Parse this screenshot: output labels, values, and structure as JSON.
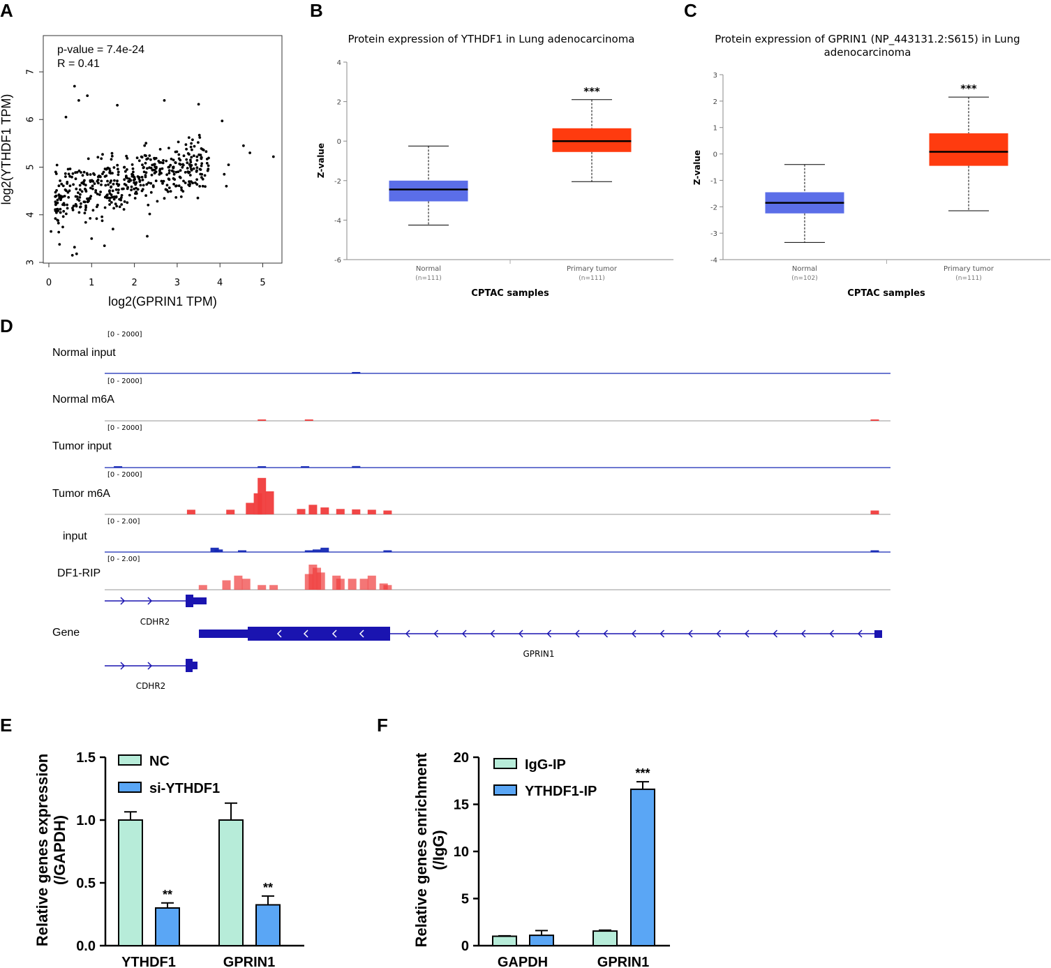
{
  "figure": {
    "panel_labels": [
      "A",
      "B",
      "C",
      "D",
      "E",
      "F"
    ]
  },
  "colors": {
    "normal_box": "#5b6ee8",
    "tumor_box": "#ff3b0f",
    "igv_blue": "#1428b4",
    "igv_red": "#f03c3c",
    "gene_blue": "#1a14b0",
    "nc_bar": "#b7ecd9",
    "si_bar": "#5aa6f5"
  },
  "chart_data": [
    {
      "id": "A",
      "type": "scatter",
      "xlabel": "log2(GPRIN1 TPM)",
      "ylabel": "log2(YTHDF1 TPM)",
      "xlim": [
        -0.1,
        5.5
      ],
      "ylim": [
        2.85,
        7.75
      ],
      "xticks": [
        "0",
        "1",
        "2",
        "3",
        "4",
        "5"
      ],
      "yticks": [
        "3",
        "4",
        "5",
        "6",
        "7"
      ],
      "annotations": [
        "p-value = 7.4e-24",
        "R = 0.41"
      ],
      "n_points": 500,
      "trend": "positive correlation, dense cloud x 0.2-3.7, y 3.9-6.0",
      "highlight_points": [
        {
          "x": 0.6,
          "y": 6.7
        },
        {
          "x": 0.9,
          "y": 6.5
        },
        {
          "x": 0.7,
          "y": 6.4
        },
        {
          "x": 0.4,
          "y": 6.05
        },
        {
          "x": 1.6,
          "y": 6.3
        },
        {
          "x": 2.7,
          "y": 6.4
        },
        {
          "x": 3.5,
          "y": 6.32
        },
        {
          "x": 4.05,
          "y": 5.97
        },
        {
          "x": 4.55,
          "y": 5.45
        },
        {
          "x": 4.7,
          "y": 5.3
        },
        {
          "x": 5.25,
          "y": 5.22
        },
        {
          "x": 4.2,
          "y": 5.05
        },
        {
          "x": 4.1,
          "y": 4.85
        },
        {
          "x": 4.15,
          "y": 4.6
        },
        {
          "x": 0.05,
          "y": 3.65
        },
        {
          "x": 0.25,
          "y": 3.38
        },
        {
          "x": 0.55,
          "y": 3.15
        },
        {
          "x": 0.65,
          "y": 3.18
        },
        {
          "x": 0.6,
          "y": 3.32
        },
        {
          "x": 1.3,
          "y": 3.35
        },
        {
          "x": 1.0,
          "y": 3.5
        },
        {
          "x": 1.5,
          "y": 3.7
        },
        {
          "x": 2.3,
          "y": 3.55
        },
        {
          "x": 3.6,
          "y": 4.6
        }
      ]
    },
    {
      "id": "B",
      "type": "box",
      "title": "Protein expression of YTHDF1 in Lung adenocarcinoma",
      "ylabel": "Z-value",
      "xlabel": "CPTAC samples",
      "ylim": [
        -6,
        4
      ],
      "yticks": [
        "4",
        "2",
        "0",
        "-2",
        "-4",
        "-6"
      ],
      "groups": [
        {
          "name": "Normal",
          "n": "(n=111)",
          "whisker_low": -4.25,
          "q1": -3.05,
          "median": -2.45,
          "q3": -2.0,
          "whisker_high": -0.25,
          "color": "normal_box"
        },
        {
          "name": "Primary tumor",
          "n": "(n=111)",
          "whisker_low": -2.05,
          "q1": -0.55,
          "median": 0.0,
          "q3": 0.65,
          "whisker_high": 2.1,
          "color": "tumor_box",
          "sig": "***"
        }
      ]
    },
    {
      "id": "C",
      "type": "box",
      "title_line1": "Protein expression of GPRIN1 (NP_443131.2:S615) in Lung",
      "title_line2": "adenocarcinoma",
      "ylabel": "Z-value",
      "xlabel": "CPTAC samples",
      "ylim": [
        -4,
        3
      ],
      "yticks": [
        "3",
        "2",
        "1",
        "0",
        "-1",
        "-2",
        "-3",
        "-4"
      ],
      "groups": [
        {
          "name": "Normal",
          "n": "(n=102)",
          "whisker_low": -3.35,
          "q1": -2.25,
          "median": -1.85,
          "q3": -1.45,
          "whisker_high": -0.4,
          "color": "normal_box"
        },
        {
          "name": "Primary tumor",
          "n": "(n=111)",
          "whisker_low": -2.15,
          "q1": -0.45,
          "median": 0.08,
          "q3": 0.78,
          "whisker_high": 2.15,
          "color": "tumor_box",
          "sig": "***"
        }
      ]
    },
    {
      "id": "D",
      "type": "genome-tracks",
      "tracks": [
        {
          "label": "Normal input",
          "range": "[0 - 2000]",
          "color": "igv_blue",
          "peaks": [
            [
              0.32,
              0.02
            ]
          ]
        },
        {
          "label": "Normal m6A",
          "range": "[0 - 2000]",
          "color": "igv_red",
          "peaks": [
            [
              0.2,
              0.03
            ],
            [
              0.26,
              0.03
            ],
            [
              0.98,
              0.03
            ]
          ]
        },
        {
          "label": "Tumor input",
          "range": "[0 - 2000]",
          "color": "igv_blue",
          "peaks": [
            [
              0.017,
              0.03
            ],
            [
              0.2,
              0.01
            ],
            [
              0.255,
              0.04
            ],
            [
              0.32,
              0.05
            ]
          ]
        },
        {
          "label": "Tumor m6A",
          "range": "[0 - 2000]",
          "color": "igv_red",
          "peaks": [
            [
              0.11,
              0.12
            ],
            [
              0.16,
              0.12
            ],
            [
              0.185,
              0.3
            ],
            [
              0.195,
              0.55
            ],
            [
              0.2,
              0.95
            ],
            [
              0.21,
              0.6
            ],
            [
              0.25,
              0.14
            ],
            [
              0.265,
              0.25
            ],
            [
              0.28,
              0.18
            ],
            [
              0.3,
              0.14
            ],
            [
              0.32,
              0.13
            ],
            [
              0.34,
              0.12
            ],
            [
              0.36,
              0.1
            ],
            [
              0.98,
              0.1
            ]
          ]
        },
        {
          "label": "input",
          "range": "[0 - 2.00]",
          "color": "igv_blue",
          "peaks": [
            [
              0.14,
              0.25
            ],
            [
              0.145,
              0.15
            ],
            [
              0.175,
              0.1
            ],
            [
              0.26,
              0.1
            ],
            [
              0.27,
              0.15
            ],
            [
              0.28,
              0.25
            ],
            [
              0.36,
              0.1
            ],
            [
              0.98,
              0.1
            ]
          ]
        },
        {
          "label": "DF1-RIP",
          "range": "[0 - 2.00]",
          "color": "igv_red",
          "peaks": [
            [
              0.125,
              0.15
            ],
            [
              0.155,
              0.3
            ],
            [
              0.17,
              0.45
            ],
            [
              0.18,
              0.35
            ],
            [
              0.2,
              0.15
            ],
            [
              0.215,
              0.15
            ],
            [
              0.26,
              0.5
            ],
            [
              0.265,
              0.8
            ],
            [
              0.27,
              0.7
            ],
            [
              0.275,
              0.55
            ],
            [
              0.295,
              0.45
            ],
            [
              0.3,
              0.35
            ],
            [
              0.315,
              0.35
            ],
            [
              0.33,
              0.35
            ],
            [
              0.34,
              0.45
            ],
            [
              0.355,
              0.2
            ],
            [
              0.36,
              0.15
            ]
          ]
        }
      ],
      "gene_label": "Gene",
      "genes": [
        {
          "name": "CDHR2",
          "strand": "+"
        },
        {
          "name": "GPRIN1",
          "strand": "-"
        },
        {
          "name": "CDHR2",
          "strand": "+"
        }
      ]
    },
    {
      "id": "E",
      "type": "bar",
      "ylabel_line1": "Relative genes expression",
      "ylabel_line2": "(/GAPDH)",
      "ylim": [
        0,
        1.5
      ],
      "yticks": [
        "0.0",
        "0.5",
        "1.0",
        "1.5"
      ],
      "categories": [
        "YTHDF1",
        "GPRIN1"
      ],
      "series": [
        {
          "name": "NC",
          "values": [
            1.0,
            1.0
          ],
          "errors": [
            0.065,
            0.135
          ],
          "color": "nc_bar"
        },
        {
          "name": "si-YTHDF1",
          "values": [
            0.3,
            0.325
          ],
          "errors": [
            0.04,
            0.07
          ],
          "color": "si_bar",
          "sig": [
            "**",
            "**"
          ]
        }
      ]
    },
    {
      "id": "F",
      "type": "bar",
      "ylabel_line1": "Relative genes enrichment",
      "ylabel_line2": "(/IgG)",
      "ylim": [
        0,
        20
      ],
      "yticks": [
        "0",
        "5",
        "10",
        "15",
        "20"
      ],
      "categories": [
        "GAPDH",
        "GPRIN1"
      ],
      "series": [
        {
          "name": "IgG-IP",
          "values": [
            1.0,
            1.55
          ],
          "errors": [
            0.05,
            0.1
          ],
          "color": "nc_bar"
        },
        {
          "name": "YTHDF1-IP",
          "values": [
            1.1,
            16.6
          ],
          "errors": [
            0.5,
            0.8
          ],
          "color": "si_bar",
          "sig": [
            "",
            "***"
          ]
        }
      ]
    }
  ]
}
